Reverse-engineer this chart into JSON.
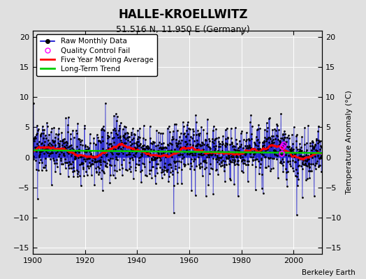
{
  "title": "HALLE-KROELLWITZ",
  "subtitle": "51.516 N, 11.950 E (Germany)",
  "ylabel": "Temperature Anomaly (°C)",
  "credit": "Berkeley Earth",
  "year_start": 1900,
  "year_end": 2012,
  "ylim": [
    -16,
    21
  ],
  "yticks": [
    -15,
    -10,
    -5,
    0,
    5,
    10,
    15,
    20
  ],
  "xticks": [
    1900,
    1920,
    1940,
    1960,
    1980,
    2000
  ],
  "bg_color": "#e0e0e0",
  "plot_bg_color": "#e0e0e0",
  "raw_line_color": "#0000cc",
  "raw_marker_color": "#000000",
  "qc_fail_color": "#ff00ff",
  "moving_avg_color": "#ff0000",
  "trend_color": "#00cc00",
  "seed": 137
}
